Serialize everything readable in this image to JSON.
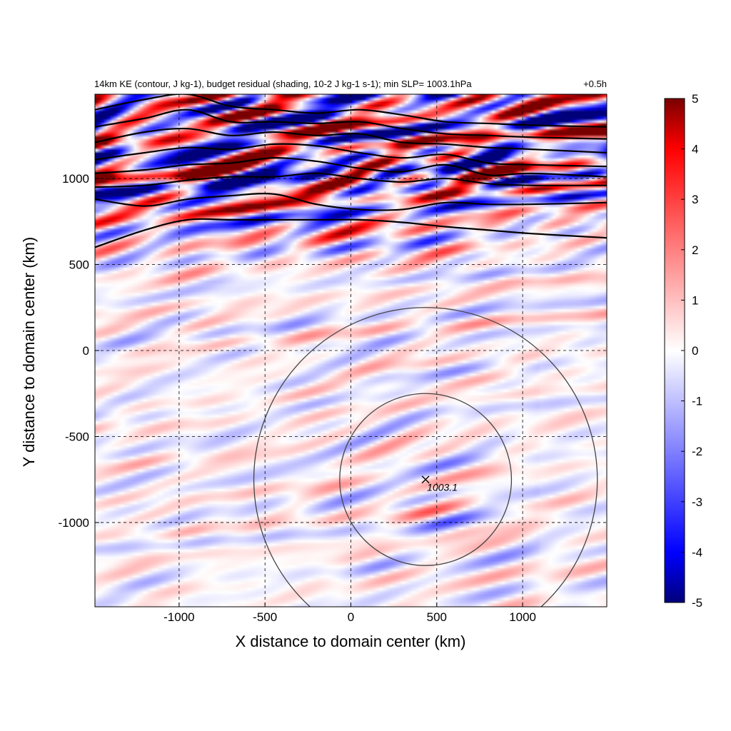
{
  "chart_data": {
    "type": "heatmap",
    "title": {
      "left": "14km KE (contour, J kg-1), budget residual (shading, 10-2 J kg-1 s-1); min SLP= 1003.1hPa",
      "right": "+0.5h"
    },
    "xlabel": "X distance to domain center (km)",
    "ylabel": "Y distance to domain center (km)",
    "xlim": [
      -1490,
      1490
    ],
    "ylim": [
      -1490,
      1490
    ],
    "x_ticks": [
      -1000,
      -500,
      0,
      500,
      1000
    ],
    "y_ticks": [
      1000,
      500,
      0,
      -500,
      -1000
    ],
    "x_tick_labels": [
      "-1000",
      "-500",
      "0",
      "500",
      "1000"
    ],
    "y_tick_labels": [
      "1000",
      "500",
      "0",
      "-500",
      "-1000"
    ],
    "grid": true,
    "colorbar": {
      "min": -5,
      "max": 5,
      "ticks": [
        5,
        4,
        3,
        2,
        1,
        0,
        -1,
        -2,
        -3,
        -4,
        -5
      ],
      "tick_labels": [
        "5",
        "4",
        "3",
        "2",
        "1",
        "0",
        "-1",
        "-2",
        "-3",
        "-4",
        "-5"
      ],
      "colors": [
        "#00007a",
        "#0000ff",
        "#ffffff",
        "#ff0000",
        "#7a0000"
      ],
      "placement": "right"
    },
    "storm_center": {
      "x": 435,
      "y": -750,
      "label": "1003.1"
    },
    "range_rings_km": [
      500,
      1000
    ],
    "ke_contours": [
      {
        "y": [
          600,
          700,
          760,
          760,
          760,
          760,
          760,
          745,
          720,
          700,
          680,
          655
        ]
      },
      {
        "y": [
          880,
          840,
          880,
          900,
          910,
          850,
          820,
          820,
          860,
          850,
          850,
          860
        ]
      },
      {
        "y": [
          950,
          960,
          990,
          1010,
          1010,
          1030,
          1000,
          980,
          1000,
          970,
          960,
          960
        ]
      },
      {
        "y": [
          1030,
          1050,
          1080,
          1090,
          1120,
          1100,
          1060,
          1040,
          1080,
          1020,
          1030,
          1010
        ]
      },
      {
        "y": [
          1110,
          1150,
          1180,
          1170,
          1200,
          1190,
          1150,
          1120,
          1140,
          1090,
          1080,
          1070
        ]
      },
      {
        "y": [
          1210,
          1270,
          1290,
          1250,
          1270,
          1250,
          1260,
          1210,
          1200,
          1180,
          1170,
          1150
        ]
      },
      {
        "y": [
          1300,
          1350,
          1400,
          1330,
          1330,
          1320,
          1330,
          1290,
          1260,
          1250,
          1240,
          1230
        ]
      },
      {
        "y": [
          1400,
          1460,
          1490,
          1420,
          1400,
          1380,
          1400,
          1370,
          1330,
          1320,
          1310,
          1300
        ]
      }
    ],
    "ke_contour_x": [
      -1490,
      -1200,
      -950,
      -700,
      -450,
      -200,
      50,
      300,
      550,
      800,
      1050,
      1490
    ]
  }
}
